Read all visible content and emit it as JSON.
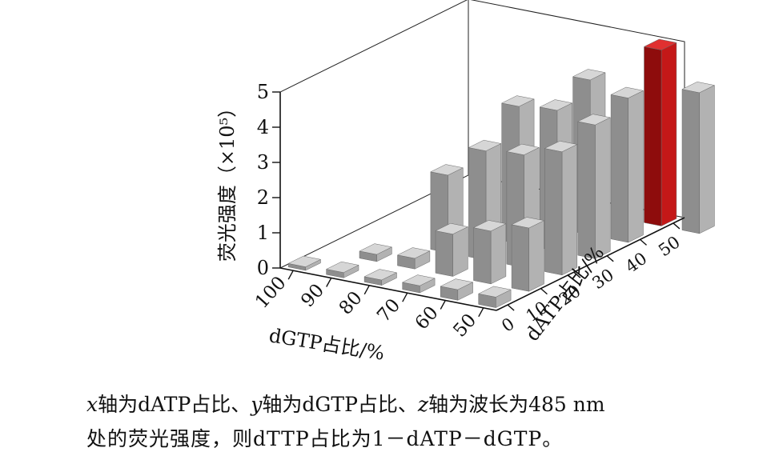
{
  "chart_data": {
    "type": "bar",
    "style": "3d-bar",
    "x_axis": {
      "label": "dATP占比/%",
      "ticks": [
        0,
        10,
        20,
        30,
        40,
        50
      ]
    },
    "y_axis": {
      "label": "dGTP占比/%",
      "ticks": [
        100,
        90,
        80,
        70,
        60,
        50
      ]
    },
    "z_axis": {
      "label": "荧光强度（×10⁵）",
      "ticks": [
        0,
        1,
        2,
        3,
        4,
        5
      ],
      "range": [
        0,
        5
      ]
    },
    "bar_color": "#a9a9a9",
    "highlight_color": "#d42020",
    "highlight": {
      "dATP": 50,
      "dGTP": 50,
      "value": 5.0
    },
    "bars": [
      {
        "dATP": 0,
        "dGTP": 100,
        "value": 0.1
      },
      {
        "dATP": 0,
        "dGTP": 90,
        "value": 0.15
      },
      {
        "dATP": 10,
        "dGTP": 90,
        "value": 0.2
      },
      {
        "dATP": 0,
        "dGTP": 80,
        "value": 0.15
      },
      {
        "dATP": 10,
        "dGTP": 80,
        "value": 0.3
      },
      {
        "dATP": 20,
        "dGTP": 80,
        "value": 2.2
      },
      {
        "dATP": 0,
        "dGTP": 70,
        "value": 0.2
      },
      {
        "dATP": 10,
        "dGTP": 70,
        "value": 1.2
      },
      {
        "dATP": 20,
        "dGTP": 70,
        "value": 3.1
      },
      {
        "dATP": 30,
        "dGTP": 70,
        "value": 3.9
      },
      {
        "dATP": 0,
        "dGTP": 60,
        "value": 0.3
      },
      {
        "dATP": 10,
        "dGTP": 60,
        "value": 1.5
      },
      {
        "dATP": 20,
        "dGTP": 60,
        "value": 3.2
      },
      {
        "dATP": 30,
        "dGTP": 60,
        "value": 4.0
      },
      {
        "dATP": 40,
        "dGTP": 60,
        "value": 4.4
      },
      {
        "dATP": 0,
        "dGTP": 50,
        "value": 0.3
      },
      {
        "dATP": 10,
        "dGTP": 50,
        "value": 1.8
      },
      {
        "dATP": 20,
        "dGTP": 50,
        "value": 3.5
      },
      {
        "dATP": 30,
        "dGTP": 50,
        "value": 3.8
      },
      {
        "dATP": 40,
        "dGTP": 50,
        "value": 4.1
      },
      {
        "dATP": 50,
        "dGTP": 50,
        "value": 5.0
      },
      {
        "dATP": 50,
        "dGTP": 40,
        "value": 4.0
      }
    ]
  },
  "caption": {
    "line1_segments": [
      {
        "text": "x",
        "italic": true
      },
      {
        "text": "轴为dATP占比、",
        "italic": false
      },
      {
        "text": "y",
        "italic": true
      },
      {
        "text": "轴为dGTP占比、",
        "italic": false
      },
      {
        "text": "z",
        "italic": true
      },
      {
        "text": "轴为波长为485 nm",
        "italic": false
      }
    ],
    "line2": "处的荧光强度，则dTTP占比为1－dATP－dGTP。"
  }
}
